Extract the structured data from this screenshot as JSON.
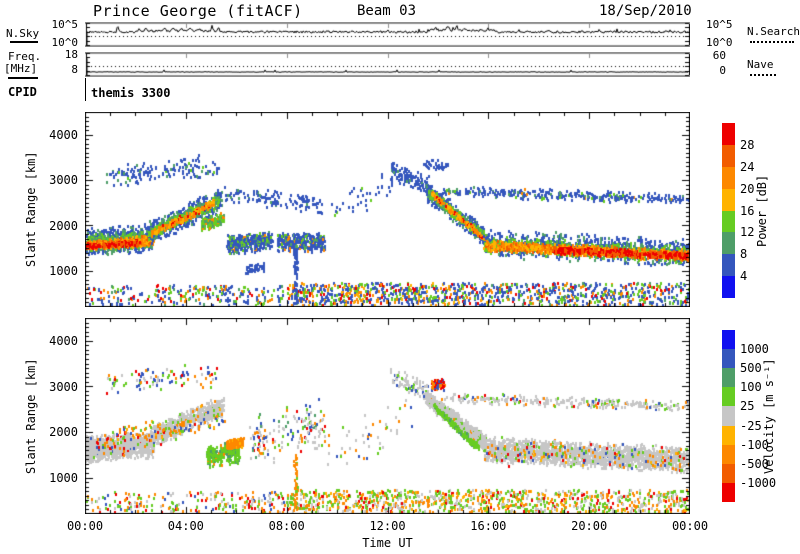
{
  "header": {
    "title": "Prince George (fitACF)",
    "beam": "Beam 03",
    "date": "18/Sep/2010"
  },
  "left_labels": {
    "nsky": "N.Sky",
    "nsky_hi": "10^5",
    "nsky_lo": "10^0",
    "freq1": "Freq.",
    "freq2": "[MHz]",
    "freq_hi": "18",
    "freq_lo": "8",
    "cpid": "CPID"
  },
  "right_labels": {
    "nsky_hi": "10^5",
    "nsky_lo": "10^0",
    "nsearch": "N.Search",
    "nave_hi": "60",
    "nave_lo": "0",
    "nave": "Nave"
  },
  "cpid_value": "themis 3300",
  "axes": {
    "y_label": "Slant Range [km]",
    "x_label": "Time UT",
    "yticks": [
      "4000",
      "3000",
      "2000",
      "1000"
    ],
    "xticks": [
      "00:00",
      "04:00",
      "08:00",
      "12:00",
      "16:00",
      "20:00",
      "00:00"
    ]
  },
  "colorbars": {
    "power": {
      "title": "Power [dB]",
      "segments": [
        "red",
        "orange2",
        "orange",
        "yellow",
        "green",
        "teal",
        "blue",
        "blue2"
      ],
      "labels": [
        "28",
        "24",
        "20",
        "16",
        "12",
        "8",
        "4"
      ]
    },
    "velocity": {
      "title": "Velocity [m s⁻¹]",
      "segments": [
        "blue2",
        "blue",
        "teal",
        "green",
        "grey",
        "yellow",
        "orange",
        "orange2",
        "red"
      ],
      "labels": [
        "1000",
        "500",
        "100",
        "25",
        "-25",
        "-100",
        "-500",
        "-1000"
      ]
    }
  },
  "chart_data": {
    "type": "heatmap",
    "station": "Prince George",
    "fit_type": "fitACF",
    "beam": 3,
    "date": "18/Sep/2010",
    "time_range_hours": [
      0,
      24
    ],
    "slant_range_km": [
      200,
      4500
    ],
    "palette": {
      "blue2": "#1010f0",
      "blue": "#3456bd",
      "teal": "#4e9e68",
      "green": "#66cc22",
      "yellow": "#ffb300",
      "orange": "#fd8800",
      "orange2": "#f25c00",
      "red": "#ee0000",
      "grey": "#c6c6c6"
    },
    "panels": [
      {
        "id": "noise",
        "ylabel": "N.Sky",
        "yticks": [
          "10^5",
          "10^0"
        ],
        "right_series": "N.Search",
        "line": {
          "base_frac": 0.4,
          "jitter": 0.045,
          "start_frac": 0.4,
          "spikes": [
            {
              "t": 1.3,
              "h": 0.3,
              "w": 0.03
            },
            {
              "t": 2.15,
              "h": 0.15,
              "w": 0.03
            },
            {
              "t": 2.4,
              "h": 0.18,
              "w": 0.03
            },
            {
              "t": 3.15,
              "h": 0.12,
              "w": 0.04
            },
            {
              "t": 3.5,
              "h": 0.16,
              "w": 0.04
            },
            {
              "t": 3.85,
              "h": 0.14,
              "w": 0.04
            },
            {
              "t": 4.2,
              "h": 0.16,
              "w": 0.05
            },
            {
              "t": 4.55,
              "h": 0.12,
              "w": 0.04
            },
            {
              "t": 5.05,
              "h": 0.32,
              "w": 0.025
            },
            {
              "t": 5.3,
              "h": 0.28,
              "w": 0.02
            },
            {
              "t": 13.9,
              "h": 0.1,
              "w": 0.06
            },
            {
              "t": 14.4,
              "h": 0.16,
              "w": 0.05
            },
            {
              "t": 14.75,
              "h": 0.22,
              "w": 0.04
            },
            {
              "t": 15.1,
              "h": 0.12,
              "w": 0.05
            },
            {
              "t": 16.1,
              "h": 0.06,
              "w": 0.05
            },
            {
              "t": 18.4,
              "h": 0.05,
              "w": 0.04
            },
            {
              "t": 21.3,
              "h": 0.05,
              "w": 0.04
            },
            {
              "t": 23.2,
              "h": 0.06,
              "w": 0.03
            }
          ],
          "bumps": [
            {
              "t0": 2.0,
              "t1": 5.3,
              "h": 0.04
            },
            {
              "t0": 13.6,
              "t1": 16.3,
              "h": 0.07
            }
          ]
        },
        "dotted": {
          "frac": 0.58
        }
      },
      {
        "id": "freq",
        "ylabel": "Freq. [MHz]",
        "yticks": [
          "18",
          "8"
        ],
        "right_yticks": [
          "60",
          "0"
        ],
        "right_series": "Nave",
        "line": {
          "base_frac": 0.8,
          "jitter": 0.012,
          "start_frac": 0.25,
          "spikes": [],
          "bumps": []
        },
        "dotted": {
          "frac": 0.58
        }
      },
      {
        "id": "power",
        "scale_label": "Power [dB]",
        "thresholds": [
          4,
          8,
          12,
          16,
          20,
          24,
          28
        ],
        "clusters": [
          {
            "t0": 0,
            "t1": 2.7,
            "r0": 1650,
            "r1": 1750,
            "hw": 330,
            "n": 550,
            "colors": {
              "blue": 0.75,
              "teal": 0.25
            }
          },
          {
            "t0": 0,
            "t1": 2.7,
            "r0": 1620,
            "r1": 1730,
            "hw": 200,
            "n": 430,
            "colors": {
              "green": 0.6,
              "teal": 0.4
            }
          },
          {
            "t0": 0,
            "t1": 2.7,
            "r0": 1580,
            "r1": 1700,
            "hw": 120,
            "n": 420,
            "colors": {
              "yellow": 0.33,
              "orange": 0.47,
              "orange2": 0.2
            }
          },
          {
            "t0": 0,
            "t1": 2.2,
            "r0": 1560,
            "r1": 1650,
            "hw": 70,
            "n": 170,
            "colors": {
              "red": 0.55,
              "orange2": 0.45
            }
          },
          {
            "t0": 2.5,
            "t1": 5.4,
            "r0": 1850,
            "r1": 2600,
            "hw": 280,
            "n": 460,
            "colors": {
              "blue": 0.8,
              "teal": 0.2
            }
          },
          {
            "t0": 2.5,
            "t1": 5.3,
            "r0": 1850,
            "r1": 2580,
            "hw": 160,
            "n": 330,
            "colors": {
              "green": 0.65,
              "teal": 0.35
            }
          },
          {
            "t0": 2.6,
            "t1": 5.1,
            "r0": 1850,
            "r1": 2520,
            "hw": 90,
            "n": 180,
            "colors": {
              "orange": 0.5,
              "yellow": 0.35,
              "red": 0.15
            }
          },
          {
            "t0": 4.6,
            "t1": 5.5,
            "r0": 2050,
            "r1": 2150,
            "hw": 160,
            "n": 160,
            "colors": {
              "green": 0.55,
              "teal": 0.3,
              "orange": 0.15
            }
          },
          {
            "t0": 5.6,
            "t1": 7.4,
            "r0": 1600,
            "r1": 1700,
            "hw": 240,
            "n": 380,
            "colors": {
              "blue": 0.62,
              "teal": 0.18,
              "green": 0.14,
              "orange": 0.06
            }
          },
          {
            "t0": 0.8,
            "t1": 5.3,
            "r0": 3100,
            "r1": 3350,
            "hw": 280,
            "n": 150,
            "colors": {
              "blue": 0.85,
              "teal": 0.1,
              "green": 0.05
            }
          },
          {
            "t0": 5.5,
            "t1": 9.4,
            "r0": 2750,
            "r1": 2450,
            "hw": 220,
            "n": 130,
            "colors": {
              "blue": 0.9,
              "teal": 0.1
            }
          },
          {
            "t0": 7.6,
            "t1": 9.5,
            "r0": 1650,
            "r1": 1650,
            "hw": 240,
            "n": 300,
            "colors": {
              "blue": 0.72,
              "teal": 0.12,
              "green": 0.1,
              "orange": 0.06
            }
          },
          {
            "t0": 6.3,
            "t1": 7.1,
            "r0": 1050,
            "r1": 1100,
            "hw": 120,
            "n": 45,
            "colors": {
              "blue": 1
            }
          },
          {
            "t0": 9.6,
            "t1": 12.2,
            "r0": 2400,
            "r1": 2900,
            "hw": 400,
            "n": 40,
            "colors": {
              "blue": 0.9,
              "green": 0.1
            }
          },
          {
            "t0": 12.1,
            "t1": 13.6,
            "r0": 3250,
            "r1": 2900,
            "hw": 230,
            "n": 110,
            "colors": {
              "blue": 0.92,
              "teal": 0.08
            }
          },
          {
            "t0": 13.4,
            "t1": 14.4,
            "r0": 3400,
            "r1": 3300,
            "hw": 120,
            "n": 40,
            "colors": {
              "blue": 1
            }
          },
          {
            "t0": 13.5,
            "t1": 15.9,
            "r0": 2780,
            "r1": 1750,
            "hw": 230,
            "n": 430,
            "colors": {
              "blue": 0.75,
              "teal": 0.25
            }
          },
          {
            "t0": 13.6,
            "t1": 15.9,
            "r0": 2750,
            "r1": 1730,
            "hw": 130,
            "n": 300,
            "colors": {
              "green": 0.6,
              "teal": 0.4
            }
          },
          {
            "t0": 13.7,
            "t1": 15.9,
            "r0": 2720,
            "r1": 1700,
            "hw": 70,
            "n": 180,
            "colors": {
              "orange": 0.5,
              "yellow": 0.35,
              "red": 0.15
            }
          },
          {
            "t0": 15.8,
            "t1": 24,
            "r0": 1650,
            "r1": 1400,
            "hw": 320,
            "n": 900,
            "colors": {
              "blue": 0.78,
              "teal": 0.22
            }
          },
          {
            "t0": 15.8,
            "t1": 24,
            "r0": 1600,
            "r1": 1380,
            "hw": 200,
            "n": 700,
            "colors": {
              "green": 0.62,
              "teal": 0.38
            }
          },
          {
            "t0": 15.8,
            "t1": 24,
            "r0": 1580,
            "r1": 1360,
            "hw": 130,
            "n": 850,
            "colors": {
              "orange": 0.5,
              "yellow": 0.28,
              "orange2": 0.22
            }
          },
          {
            "t0": 18.5,
            "t1": 24,
            "r0": 1480,
            "r1": 1350,
            "hw": 90,
            "n": 480,
            "colors": {
              "red": 0.6,
              "orange2": 0.4
            }
          },
          {
            "t0": 14.1,
            "t1": 24,
            "r0": 2780,
            "r1": 2600,
            "hw": 130,
            "n": 330,
            "colors": {
              "blue": 0.8,
              "teal": 0.12,
              "green": 0.06,
              "orange": 0.02
            }
          },
          {
            "t0": 0,
            "t1": 8,
            "r0": 260,
            "r1": 700,
            "uniform": true,
            "n": 260,
            "colors": {
              "blue": 0.5,
              "green": 0.2,
              "orange": 0.15,
              "red": 0.08,
              "teal": 0.07
            }
          },
          {
            "t0": 8,
            "t1": 16,
            "r0": 260,
            "r1": 750,
            "uniform": true,
            "n": 600,
            "colors": {
              "blue": 0.45,
              "green": 0.2,
              "orange": 0.18,
              "red": 0.1,
              "yellow": 0.07
            }
          },
          {
            "t0": 16,
            "t1": 24,
            "r0": 260,
            "r1": 750,
            "uniform": true,
            "n": 480,
            "colors": {
              "blue": 0.5,
              "green": 0.2,
              "orange": 0.15,
              "red": 0.08,
              "teal": 0.07
            }
          },
          {
            "t0": 8.25,
            "t1": 8.4,
            "r0": 300,
            "r1": 1550,
            "uniform": true,
            "n": 70,
            "colors": {
              "blue": 1
            }
          }
        ]
      },
      {
        "id": "velocity",
        "scale_label": "Velocity [m s⁻¹]",
        "thresholds": [
          -1000,
          -500,
          -100,
          -25,
          25,
          100,
          500,
          1000
        ],
        "clusters": [
          {
            "t0": 0,
            "t1": 0.3,
            "r0": 1650,
            "r1": 1650,
            "hw": 320,
            "n": 260,
            "colors": {
              "grey": 1
            }
          },
          {
            "t0": 0,
            "t1": 2.7,
            "r0": 1650,
            "r1": 1750,
            "hw": 300,
            "n": 1000,
            "colors": {
              "grey": 0.97,
              "blue": 0.01,
              "red": 0.01,
              "orange": 0.01
            }
          },
          {
            "t0": 2.5,
            "t1": 5.5,
            "r0": 1900,
            "r1": 2600,
            "hw": 260,
            "n": 700,
            "colors": {
              "grey": 0.94,
              "orange": 0.03,
              "green": 0.02,
              "blue": 0.01
            }
          },
          {
            "t0": 0.3,
            "t1": 5.5,
            "r0": 1700,
            "r1": 2400,
            "hw": 350,
            "n": 160,
            "colors": {
              "orange": 0.4,
              "green": 0.2,
              "blue": 0.15,
              "red": 0.15,
              "yellow": 0.1
            }
          },
          {
            "t0": 0.8,
            "t1": 5.2,
            "r0": 3100,
            "r1": 3300,
            "hw": 280,
            "n": 100,
            "colors": {
              "blue": 0.25,
              "green": 0.2,
              "orange": 0.25,
              "red": 0.15,
              "grey": 0.15
            }
          },
          {
            "t0": 4.8,
            "t1": 6.1,
            "r0": 1500,
            "r1": 1600,
            "hw": 280,
            "n": 260,
            "colors": {
              "green": 0.75,
              "teal": 0.15,
              "orange": 0.1
            }
          },
          {
            "t0": 5.6,
            "t1": 6.25,
            "r0": 1750,
            "r1": 1800,
            "hw": 110,
            "n": 200,
            "colors": {
              "orange": 0.85,
              "yellow": 0.15
            }
          },
          {
            "t0": 6.5,
            "t1": 9.5,
            "r0": 1800,
            "r1": 2200,
            "hw": 600,
            "n": 170,
            "colors": {
              "grey": 0.45,
              "blue": 0.15,
              "green": 0.15,
              "orange": 0.12,
              "red": 0.08,
              "teal": 0.05
            }
          },
          {
            "t0": 9.6,
            "t1": 13,
            "r0": 1500,
            "r1": 2500,
            "hw": 700,
            "n": 50,
            "colors": {
              "grey": 0.5,
              "green": 0.2,
              "orange": 0.15,
              "blue": 0.15
            }
          },
          {
            "t0": 12.1,
            "t1": 13.6,
            "r0": 3250,
            "r1": 2900,
            "hw": 230,
            "n": 90,
            "colors": {
              "grey": 0.7,
              "green": 0.15,
              "blue": 0.15
            }
          },
          {
            "t0": 13.7,
            "t1": 14.25,
            "r0": 3050,
            "r1": 3050,
            "hw": 140,
            "n": 70,
            "colors": {
              "red": 0.55,
              "orange": 0.25,
              "blue": 0.2
            }
          },
          {
            "t0": 13.5,
            "t1": 15.9,
            "r0": 2780,
            "r1": 1750,
            "hw": 200,
            "n": 650,
            "colors": {
              "grey": 0.93,
              "green": 0.05,
              "orange": 0.02
            }
          },
          {
            "t0": 13.8,
            "t1": 15.6,
            "r0": 2600,
            "r1": 1650,
            "hw": 90,
            "n": 220,
            "colors": {
              "green": 0.8,
              "teal": 0.2
            }
          },
          {
            "t0": 15.8,
            "t1": 24,
            "r0": 1650,
            "r1": 1400,
            "hw": 300,
            "n": 2000,
            "colors": {
              "grey": 0.96,
              "green": 0.02,
              "orange": 0.01,
              "blue": 0.01
            }
          },
          {
            "t0": 15.8,
            "t1": 24,
            "r0": 1600,
            "r1": 1400,
            "hw": 310,
            "n": 150,
            "colors": {
              "green": 0.3,
              "orange": 0.25,
              "blue": 0.2,
              "red": 0.15,
              "yellow": 0.1
            }
          },
          {
            "t0": 14.1,
            "t1": 24,
            "r0": 2780,
            "r1": 2600,
            "hw": 130,
            "n": 300,
            "colors": {
              "grey": 0.72,
              "green": 0.12,
              "blue": 0.06,
              "orange": 0.06,
              "red": 0.04
            }
          },
          {
            "t0": 0,
            "t1": 8,
            "r0": 260,
            "r1": 700,
            "uniform": true,
            "n": 220,
            "colors": {
              "green": 0.3,
              "orange": 0.22,
              "grey": 0.22,
              "blue": 0.12,
              "red": 0.14
            }
          },
          {
            "t0": 8,
            "t1": 16,
            "r0": 260,
            "r1": 750,
            "uniform": true,
            "n": 560,
            "colors": {
              "green": 0.3,
              "orange": 0.25,
              "grey": 0.25,
              "yellow": 0.1,
              "red": 0.1
            }
          },
          {
            "t0": 16,
            "t1": 24,
            "r0": 260,
            "r1": 750,
            "uniform": true,
            "n": 520,
            "colors": {
              "green": 0.3,
              "orange": 0.25,
              "grey": 0.25,
              "yellow": 0.1,
              "red": 0.1
            }
          },
          {
            "t0": 8.25,
            "t1": 8.4,
            "r0": 300,
            "r1": 1550,
            "uniform": true,
            "n": 45,
            "colors": {
              "orange": 0.8,
              "green": 0.2
            }
          }
        ]
      }
    ]
  }
}
